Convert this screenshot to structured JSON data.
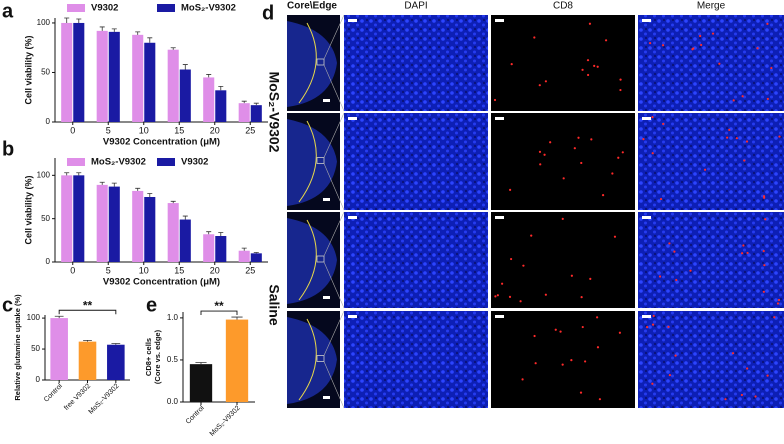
{
  "panel_labels": [
    "a",
    "b",
    "c",
    "d",
    "e"
  ],
  "image_grid": {
    "column_titles": [
      "Core\\Edge",
      "DAPI",
      "CD8",
      "Merge"
    ],
    "row_labels": [
      "MoS₂-V9302",
      "Saline"
    ]
  },
  "chart_data": [
    {
      "type": "bar",
      "xlabel": "V9302 Concentration (μM)",
      "ylabel": "Cell viability (%)",
      "categories": [
        "0",
        "5",
        "10",
        "15",
        "20",
        "25"
      ],
      "series": [
        {
          "name": "V9302",
          "color": "#df8ee8",
          "values": [
            100,
            92,
            88,
            73,
            45,
            19
          ],
          "errors": [
            5,
            4,
            3,
            2,
            3,
            2
          ]
        },
        {
          "name": "MoS₂-V9302",
          "color": "#1a1aa3",
          "values": [
            100,
            91,
            80,
            53,
            32,
            17
          ],
          "errors": [
            4,
            3,
            5,
            5,
            4,
            2
          ]
        }
      ],
      "ylim": [
        0,
        105
      ],
      "yticks": [
        0,
        50,
        100
      ]
    },
    {
      "type": "bar",
      "xlabel": "V9302 Concentration (μM)",
      "ylabel": "Cell viability (%)",
      "categories": [
        "0",
        "5",
        "10",
        "15",
        "20",
        "25"
      ],
      "series": [
        {
          "name": "MoS₂-V9302",
          "color": "#df8ee8",
          "values": [
            100,
            89,
            82,
            68,
            32,
            13
          ],
          "errors": [
            3,
            3,
            3,
            2,
            3,
            3
          ]
        },
        {
          "name": "V9302",
          "color": "#1a1aa3",
          "values": [
            100,
            87,
            75,
            49,
            30,
            10
          ],
          "errors": [
            3,
            4,
            4,
            4,
            4,
            1
          ]
        }
      ],
      "ylim": [
        0,
        120
      ],
      "yticks": [
        0,
        50,
        100
      ]
    },
    {
      "type": "bar",
      "ylabel": "Relative glutamine uptake (%)",
      "categories": [
        "Control",
        "free V9302",
        "MoS₂-V9302"
      ],
      "values": [
        100,
        62,
        57
      ],
      "errors": [
        3,
        2,
        2
      ],
      "colors": [
        "#df8ee8",
        "#fd9a2b",
        "#1a1aa3"
      ],
      "ylim": [
        0,
        105
      ],
      "yticks": [
        0,
        50,
        100
      ],
      "xtick_rotation": 45,
      "annotation": "**"
    },
    {
      "type": "bar",
      "ylabel": [
        "CD8+ cells",
        "(Core vs. edge)"
      ],
      "categories": [
        "Control",
        "MoS₂-V9302"
      ],
      "values": [
        0.45,
        0.98
      ],
      "errors": [
        0.02,
        0.03
      ],
      "colors": [
        "#111111",
        "#fd9a2b"
      ],
      "ylim": [
        0,
        1.07
      ],
      "yticks": [
        {
          "value": 0,
          "label": "0.0"
        },
        {
          "value": 0.5,
          "label": "0.5"
        },
        {
          "value": 1,
          "label": "1.0"
        }
      ],
      "xtick_rotation": 45,
      "annotation": "**"
    }
  ]
}
